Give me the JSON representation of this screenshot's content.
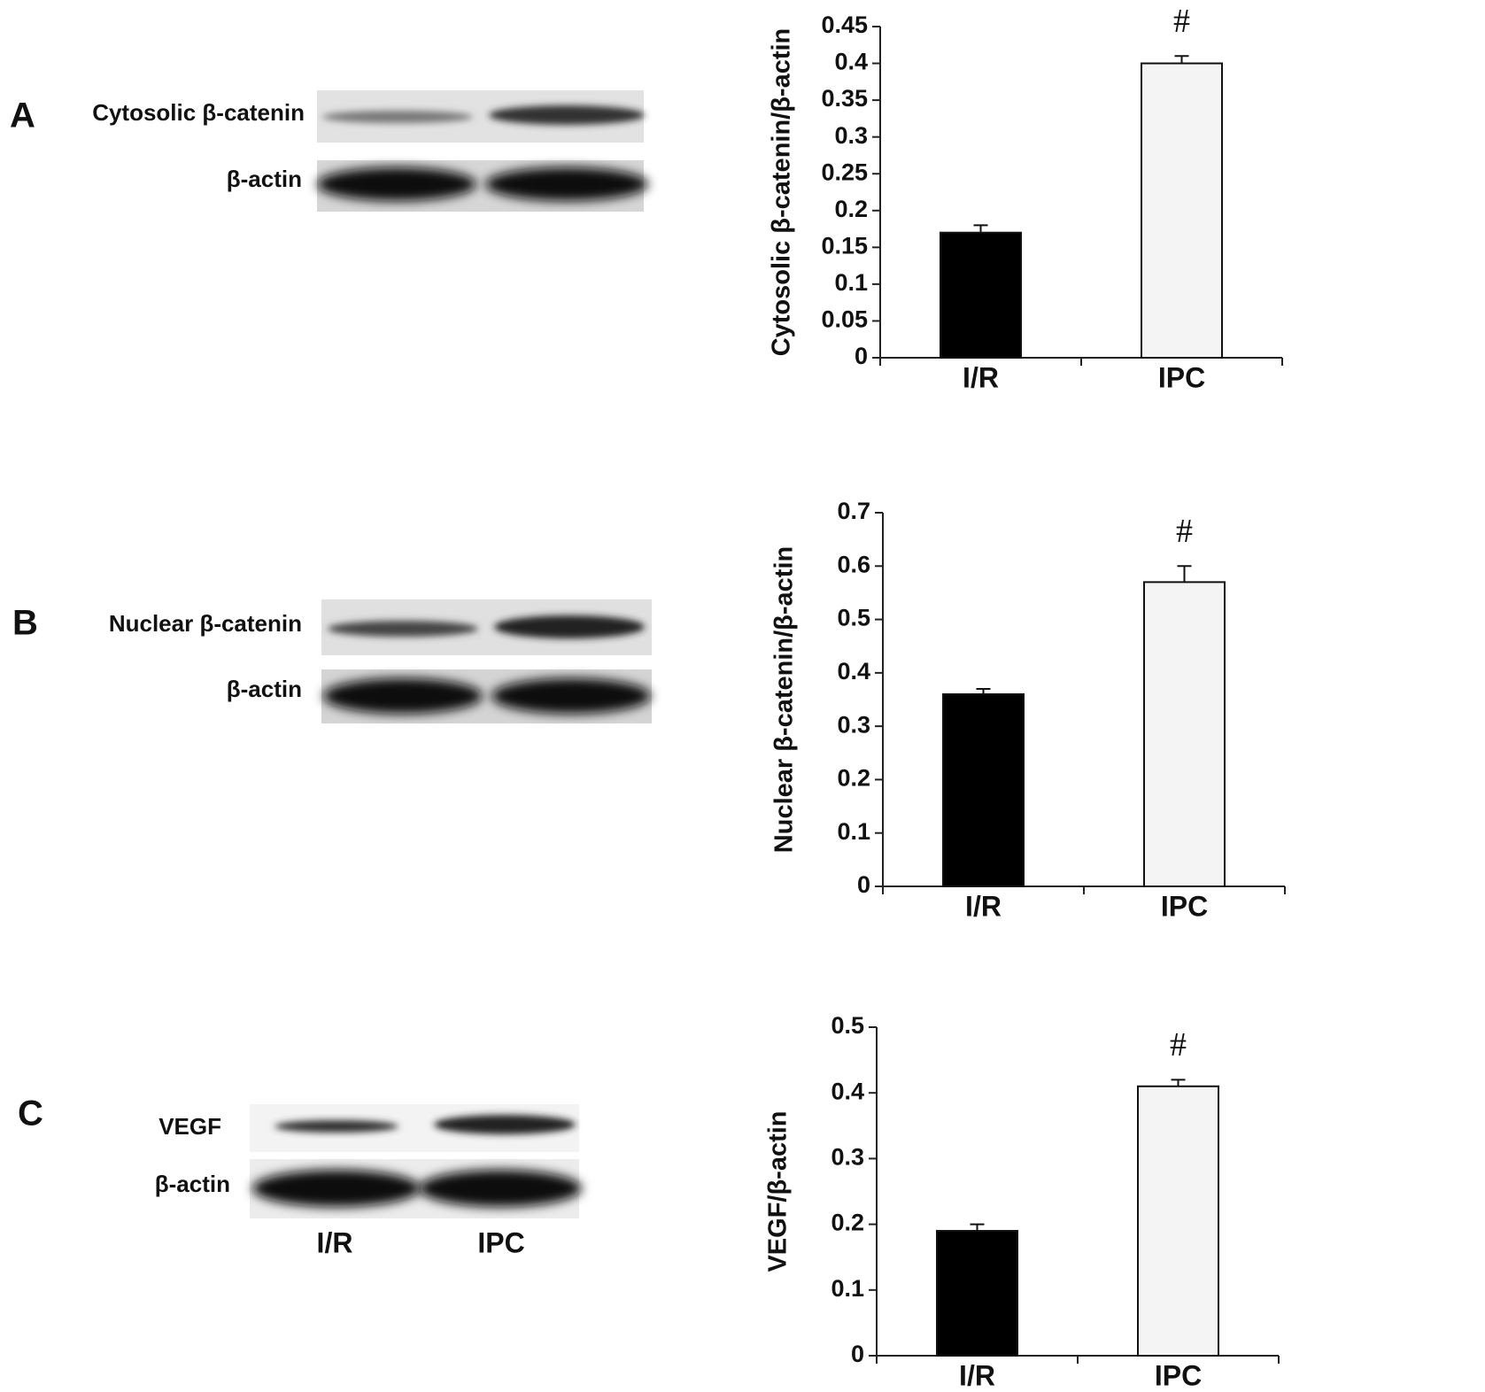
{
  "panels": [
    {
      "letter": "A",
      "blot_labels": [
        "Cytosolic β-catenin",
        "β-actin"
      ]
    },
    {
      "letter": "B",
      "blot_labels": [
        "Nuclear β-catenin",
        "β-actin"
      ]
    },
    {
      "letter": "C",
      "blot_labels": [
        "VEGF",
        "β-actin"
      ],
      "lane_labels": [
        "I/R",
        "IPC"
      ]
    }
  ],
  "chart_data": [
    {
      "type": "bar",
      "y_label": "Cytosolic β-catenin/β-actin",
      "categories": [
        "I/R",
        "IPC"
      ],
      "values": [
        0.17,
        0.4
      ],
      "errors": [
        0.01,
        0.01
      ],
      "colors": [
        "#000000",
        "#f4f4f4"
      ],
      "annotations": [
        null,
        "#"
      ],
      "ylim": [
        0,
        0.45
      ],
      "yticks": [
        0,
        0.05,
        0.1,
        0.15,
        0.2,
        0.25,
        0.3,
        0.35,
        0.4,
        0.45
      ]
    },
    {
      "type": "bar",
      "y_label": "Nuclear β-catenin/β-actin",
      "categories": [
        "I/R",
        "IPC"
      ],
      "values": [
        0.36,
        0.57
      ],
      "errors": [
        0.01,
        0.03
      ],
      "colors": [
        "#000000",
        "#f4f4f4"
      ],
      "annotations": [
        null,
        "#"
      ],
      "ylim": [
        0,
        0.7
      ],
      "yticks": [
        0,
        0.1,
        0.2,
        0.3,
        0.4,
        0.5,
        0.6,
        0.7
      ]
    },
    {
      "type": "bar",
      "y_label": "VEGF/β-actin",
      "categories": [
        "I/R",
        "IPC"
      ],
      "values": [
        0.19,
        0.41
      ],
      "errors": [
        0.01,
        0.01
      ],
      "colors": [
        "#000000",
        "#f4f4f4"
      ],
      "annotations": [
        null,
        "#"
      ],
      "ylim": [
        0,
        0.5
      ],
      "yticks": [
        0,
        0.1,
        0.2,
        0.3,
        0.4,
        0.5
      ]
    }
  ]
}
